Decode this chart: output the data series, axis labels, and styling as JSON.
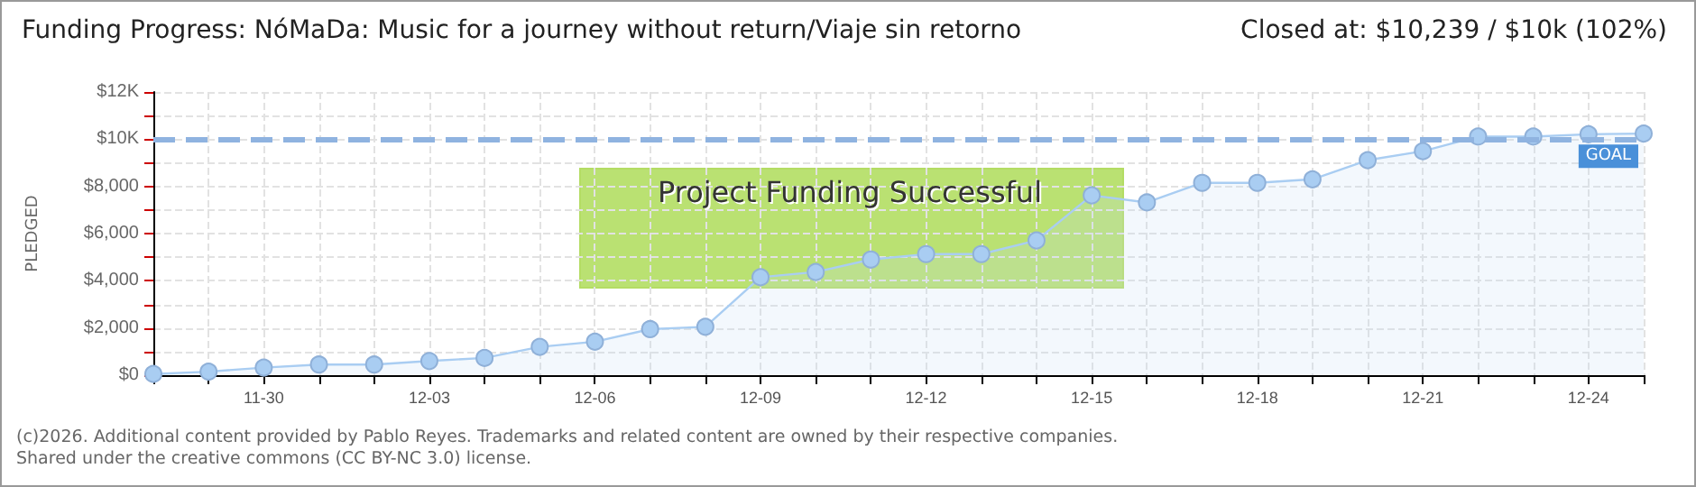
{
  "chart_data": {
    "type": "area",
    "title": "Funding Progress: NóMaDa: Music for a journey without return/Viaje sin retorno",
    "subtitle": "Closed at: $10,239 / $10k (102%)",
    "ylabel": "PLEDGED",
    "annotations": [
      "Project Funding Successful",
      "(c)2026. Additional content provided by Pablo Reyes. Trademarks and related content are owned by their respective companies.",
      "Shared under the creative commons (CC BY-NC 3.0) license."
    ],
    "categories": [
      null,
      null,
      "11-30",
      null,
      null,
      "12-03",
      null,
      null,
      "12-06",
      null,
      null,
      "12-09",
      null,
      null,
      "12-12",
      null,
      null,
      "12-15",
      null,
      null,
      "12-18",
      null,
      null,
      "12-21",
      null,
      null,
      "12-24",
      null
    ],
    "series": [
      {
        "color": "#a9cdf2",
        "values": [
          50,
          150,
          320,
          450,
          450,
          600,
          730,
          1200,
          1420,
          1950,
          2050,
          4150,
          4370,
          4900,
          5130,
          5130,
          5710,
          7620,
          7320,
          8150,
          8150,
          8300,
          9110,
          9490,
          10110,
          10110,
          10210,
          10239
        ]
      }
    ],
    "ylim": [
      0,
      12000
    ],
    "yticks": [
      {
        "value": 0,
        "label": "$0"
      },
      {
        "value": 1000,
        "label": null
      },
      {
        "value": 2000,
        "label": "$2,000"
      },
      {
        "value": 3000,
        "label": null
      },
      {
        "value": 4000,
        "label": "$4,000"
      },
      {
        "value": 5000,
        "label": null
      },
      {
        "value": 6000,
        "label": "$6,000"
      },
      {
        "value": 7000,
        "label": null
      },
      {
        "value": 8000,
        "label": "$8,000"
      },
      {
        "value": 9000,
        "label": null
      },
      {
        "value": 10000,
        "label": "$10K"
      },
      {
        "value": 11000,
        "label": null
      },
      {
        "value": 12000,
        "label": "$12K"
      }
    ],
    "ref_lines": [
      {
        "axis": "y",
        "value": 10000,
        "label": "GOAL",
        "color": "#8fb3e0",
        "line_style": "dashed"
      }
    ],
    "grid": true,
    "marker": "circle",
    "line_style": "solid"
  }
}
